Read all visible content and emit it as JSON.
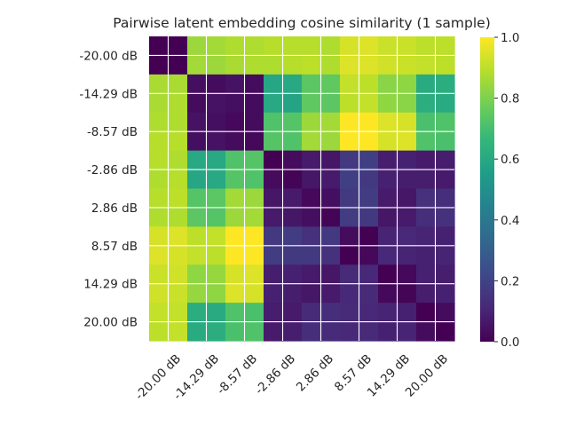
{
  "chart_data": {
    "type": "heatmap",
    "title": "Pairwise latent embedding cosine similarity (1 sample)",
    "xlabel": "",
    "ylabel": "",
    "x_categories": [
      "-20.00 dB",
      "-14.29 dB",
      "-8.57 dB",
      "-2.86 dB",
      "2.86 dB",
      "8.57 dB",
      "14.29 dB",
      "20.00 dB"
    ],
    "y_categories": [
      "-20.00 dB",
      "-14.29 dB",
      "-8.57 dB",
      "-2.86 dB",
      "2.86 dB",
      "8.57 dB",
      "14.29 dB",
      "20.00 dB"
    ],
    "matrix": [
      [
        0.0,
        0.0,
        0.85,
        0.86,
        0.88,
        0.88,
        0.89,
        0.89,
        0.89,
        0.88,
        0.94,
        0.95,
        0.92,
        0.92,
        0.9,
        0.9
      ],
      [
        0.0,
        0.0,
        0.86,
        0.85,
        0.87,
        0.88,
        0.88,
        0.89,
        0.9,
        0.88,
        0.95,
        0.95,
        0.93,
        0.92,
        0.91,
        0.9
      ],
      [
        0.87,
        0.87,
        0.04,
        0.03,
        0.05,
        0.03,
        0.59,
        0.6,
        0.74,
        0.75,
        0.91,
        0.9,
        0.82,
        0.83,
        0.61,
        0.62
      ],
      [
        0.87,
        0.88,
        0.03,
        0.05,
        0.04,
        0.03,
        0.6,
        0.58,
        0.75,
        0.74,
        0.9,
        0.91,
        0.83,
        0.82,
        0.62,
        0.61
      ],
      [
        0.88,
        0.88,
        0.05,
        0.04,
        0.02,
        0.03,
        0.72,
        0.73,
        0.85,
        0.86,
        1.0,
        1.0,
        0.95,
        0.94,
        0.71,
        0.72
      ],
      [
        0.89,
        0.89,
        0.04,
        0.05,
        0.03,
        0.02,
        0.73,
        0.72,
        0.86,
        0.85,
        1.0,
        1.0,
        0.94,
        0.95,
        0.72,
        0.71
      ],
      [
        0.89,
        0.88,
        0.6,
        0.6,
        0.72,
        0.73,
        0.0,
        0.03,
        0.07,
        0.06,
        0.17,
        0.19,
        0.08,
        0.09,
        0.07,
        0.08
      ],
      [
        0.88,
        0.89,
        0.59,
        0.6,
        0.73,
        0.72,
        0.03,
        0.01,
        0.06,
        0.07,
        0.19,
        0.17,
        0.09,
        0.08,
        0.08,
        0.07
      ],
      [
        0.89,
        0.9,
        0.73,
        0.74,
        0.86,
        0.85,
        0.06,
        0.07,
        0.02,
        0.04,
        0.17,
        0.18,
        0.07,
        0.06,
        0.14,
        0.13
      ],
      [
        0.88,
        0.88,
        0.74,
        0.73,
        0.85,
        0.86,
        0.07,
        0.06,
        0.04,
        0.01,
        0.18,
        0.17,
        0.06,
        0.07,
        0.13,
        0.14
      ],
      [
        0.94,
        0.95,
        0.9,
        0.91,
        1.0,
        1.0,
        0.17,
        0.18,
        0.14,
        0.17,
        0.03,
        0.0,
        0.1,
        0.11,
        0.1,
        0.09
      ],
      [
        0.95,
        0.94,
        0.91,
        0.9,
        1.0,
        1.0,
        0.18,
        0.17,
        0.17,
        0.14,
        0.0,
        0.02,
        0.11,
        0.1,
        0.09,
        0.1
      ],
      [
        0.92,
        0.93,
        0.83,
        0.84,
        0.94,
        0.95,
        0.08,
        0.09,
        0.07,
        0.06,
        0.12,
        0.11,
        0.0,
        0.02,
        0.09,
        0.08
      ],
      [
        0.93,
        0.92,
        0.84,
        0.83,
        0.95,
        0.94,
        0.09,
        0.08,
        0.06,
        0.07,
        0.11,
        0.12,
        0.02,
        0.01,
        0.08,
        0.09
      ],
      [
        0.91,
        0.91,
        0.62,
        0.61,
        0.72,
        0.71,
        0.08,
        0.07,
        0.12,
        0.13,
        0.12,
        0.11,
        0.1,
        0.09,
        0.0,
        0.03
      ],
      [
        0.9,
        0.91,
        0.61,
        0.62,
        0.71,
        0.72,
        0.07,
        0.08,
        0.13,
        0.12,
        0.11,
        0.12,
        0.09,
        0.1,
        0.03,
        0.0
      ]
    ],
    "colormap": "viridis",
    "colorbar": {
      "range": [
        0.0,
        1.0
      ],
      "ticks": [
        "0.0",
        "0.2",
        "0.4",
        "0.6",
        "0.8",
        "1.0"
      ]
    },
    "grid": true,
    "colors": {
      "grid": "#ffffff",
      "text": "#262626",
      "viridis_stops": [
        "#440154",
        "#482878",
        "#3e4989",
        "#31688e",
        "#26828e",
        "#1f9e89",
        "#35b779",
        "#6ece58",
        "#b5de2b",
        "#fde725"
      ]
    }
  }
}
